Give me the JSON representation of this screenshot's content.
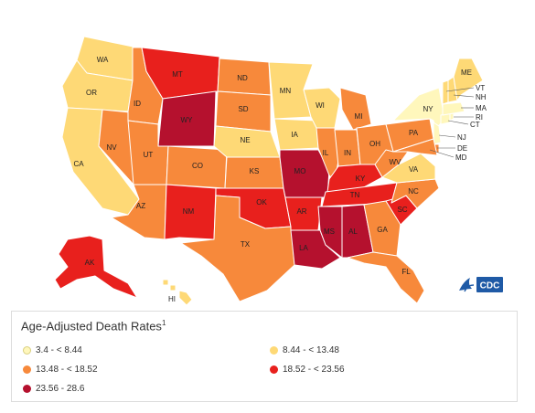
{
  "legend": {
    "title": "Age-Adjusted Death Rates",
    "footnote_mark": "1",
    "items": [
      {
        "label": "3.4 - < 8.44",
        "color": "#fff7bc"
      },
      {
        "label": "8.44 - < 13.48",
        "color": "#fed976"
      },
      {
        "label": "13.48 - < 18.52",
        "color": "#f7893b"
      },
      {
        "label": "18.52 - < 23.56",
        "color": "#e8201d"
      },
      {
        "label": "23.56 - 28.6",
        "color": "#b5112e"
      }
    ]
  },
  "logo": {
    "text": "CDC"
  },
  "states": [
    {
      "abbr": "WA",
      "class": 1
    },
    {
      "abbr": "OR",
      "class": 1
    },
    {
      "abbr": "CA",
      "class": 1
    },
    {
      "abbr": "NV",
      "class": 2
    },
    {
      "abbr": "ID",
      "class": 2
    },
    {
      "abbr": "MT",
      "class": 3
    },
    {
      "abbr": "WY",
      "class": 4
    },
    {
      "abbr": "UT",
      "class": 2
    },
    {
      "abbr": "AZ",
      "class": 2
    },
    {
      "abbr": "CO",
      "class": 2
    },
    {
      "abbr": "NM",
      "class": 3
    },
    {
      "abbr": "ND",
      "class": 2
    },
    {
      "abbr": "SD",
      "class": 2
    },
    {
      "abbr": "NE",
      "class": 1
    },
    {
      "abbr": "KS",
      "class": 2
    },
    {
      "abbr": "OK",
      "class": 3
    },
    {
      "abbr": "TX",
      "class": 2
    },
    {
      "abbr": "MN",
      "class": 1
    },
    {
      "abbr": "IA",
      "class": 1
    },
    {
      "abbr": "MO",
      "class": 4
    },
    {
      "abbr": "AR",
      "class": 3
    },
    {
      "abbr": "LA",
      "class": 4
    },
    {
      "abbr": "WI",
      "class": 1
    },
    {
      "abbr": "IL",
      "class": 2
    },
    {
      "abbr": "MI",
      "class": 2
    },
    {
      "abbr": "IN",
      "class": 2
    },
    {
      "abbr": "OH",
      "class": 2
    },
    {
      "abbr": "KY",
      "class": 3
    },
    {
      "abbr": "TN",
      "class": 3
    },
    {
      "abbr": "MS",
      "class": 4
    },
    {
      "abbr": "AL",
      "class": 4
    },
    {
      "abbr": "GA",
      "class": 2
    },
    {
      "abbr": "FL",
      "class": 2
    },
    {
      "abbr": "SC",
      "class": 3
    },
    {
      "abbr": "NC",
      "class": 2
    },
    {
      "abbr": "VA",
      "class": 1
    },
    {
      "abbr": "WV",
      "class": 2
    },
    {
      "abbr": "PA",
      "class": 2
    },
    {
      "abbr": "NY",
      "class": 0
    },
    {
      "abbr": "ME",
      "class": 1
    },
    {
      "abbr": "VT",
      "class": 1
    },
    {
      "abbr": "NH",
      "class": 1
    },
    {
      "abbr": "MA",
      "class": 0
    },
    {
      "abbr": "RI",
      "class": 0
    },
    {
      "abbr": "CT",
      "class": 0
    },
    {
      "abbr": "NJ",
      "class": 0
    },
    {
      "abbr": "DE",
      "class": 2
    },
    {
      "abbr": "MD",
      "class": 2
    },
    {
      "abbr": "AK",
      "class": 3
    },
    {
      "abbr": "HI",
      "class": 1
    }
  ]
}
